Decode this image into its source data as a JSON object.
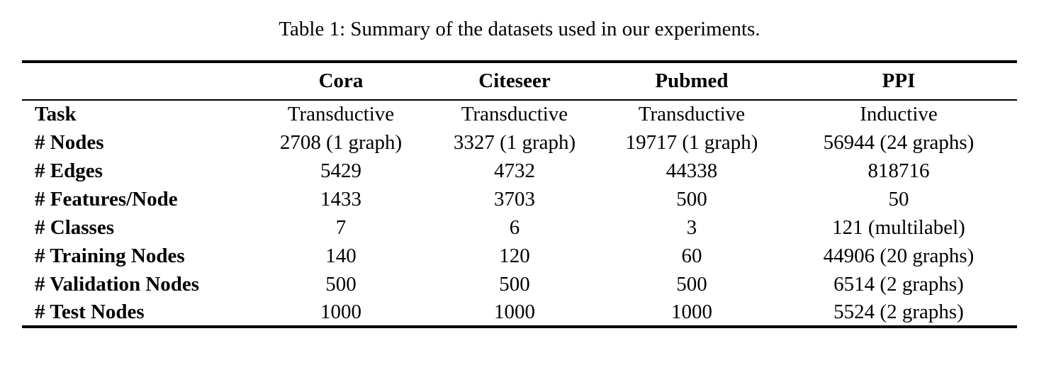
{
  "caption": "Table 1: Summary of the datasets used in our experiments.",
  "colors": {
    "text": "#000000",
    "background": "#ffffff",
    "rule": "#000000"
  },
  "table": {
    "columns": [
      "",
      "Cora",
      "Citeseer",
      "Pubmed",
      "PPI"
    ],
    "rows": [
      {
        "label": "Task",
        "values": [
          "Transductive",
          "Transductive",
          "Transductive",
          "Inductive"
        ]
      },
      {
        "label": "# Nodes",
        "values": [
          "2708 (1 graph)",
          "3327 (1 graph)",
          "19717 (1 graph)",
          "56944 (24 graphs)"
        ]
      },
      {
        "label": "# Edges",
        "values": [
          "5429",
          "4732",
          "44338",
          "818716"
        ]
      },
      {
        "label": "# Features/Node",
        "values": [
          "1433",
          "3703",
          "500",
          "50"
        ]
      },
      {
        "label": "# Classes",
        "values": [
          "7",
          "6",
          "3",
          "121 (multilabel)"
        ]
      },
      {
        "label": "# Training Nodes",
        "values": [
          "140",
          "120",
          "60",
          "44906 (20 graphs)"
        ]
      },
      {
        "label": "# Validation Nodes",
        "values": [
          "500",
          "500",
          "500",
          "6514 (2 graphs)"
        ]
      },
      {
        "label": "# Test Nodes",
        "values": [
          "1000",
          "1000",
          "1000",
          "5524 (2 graphs)"
        ]
      }
    ]
  }
}
